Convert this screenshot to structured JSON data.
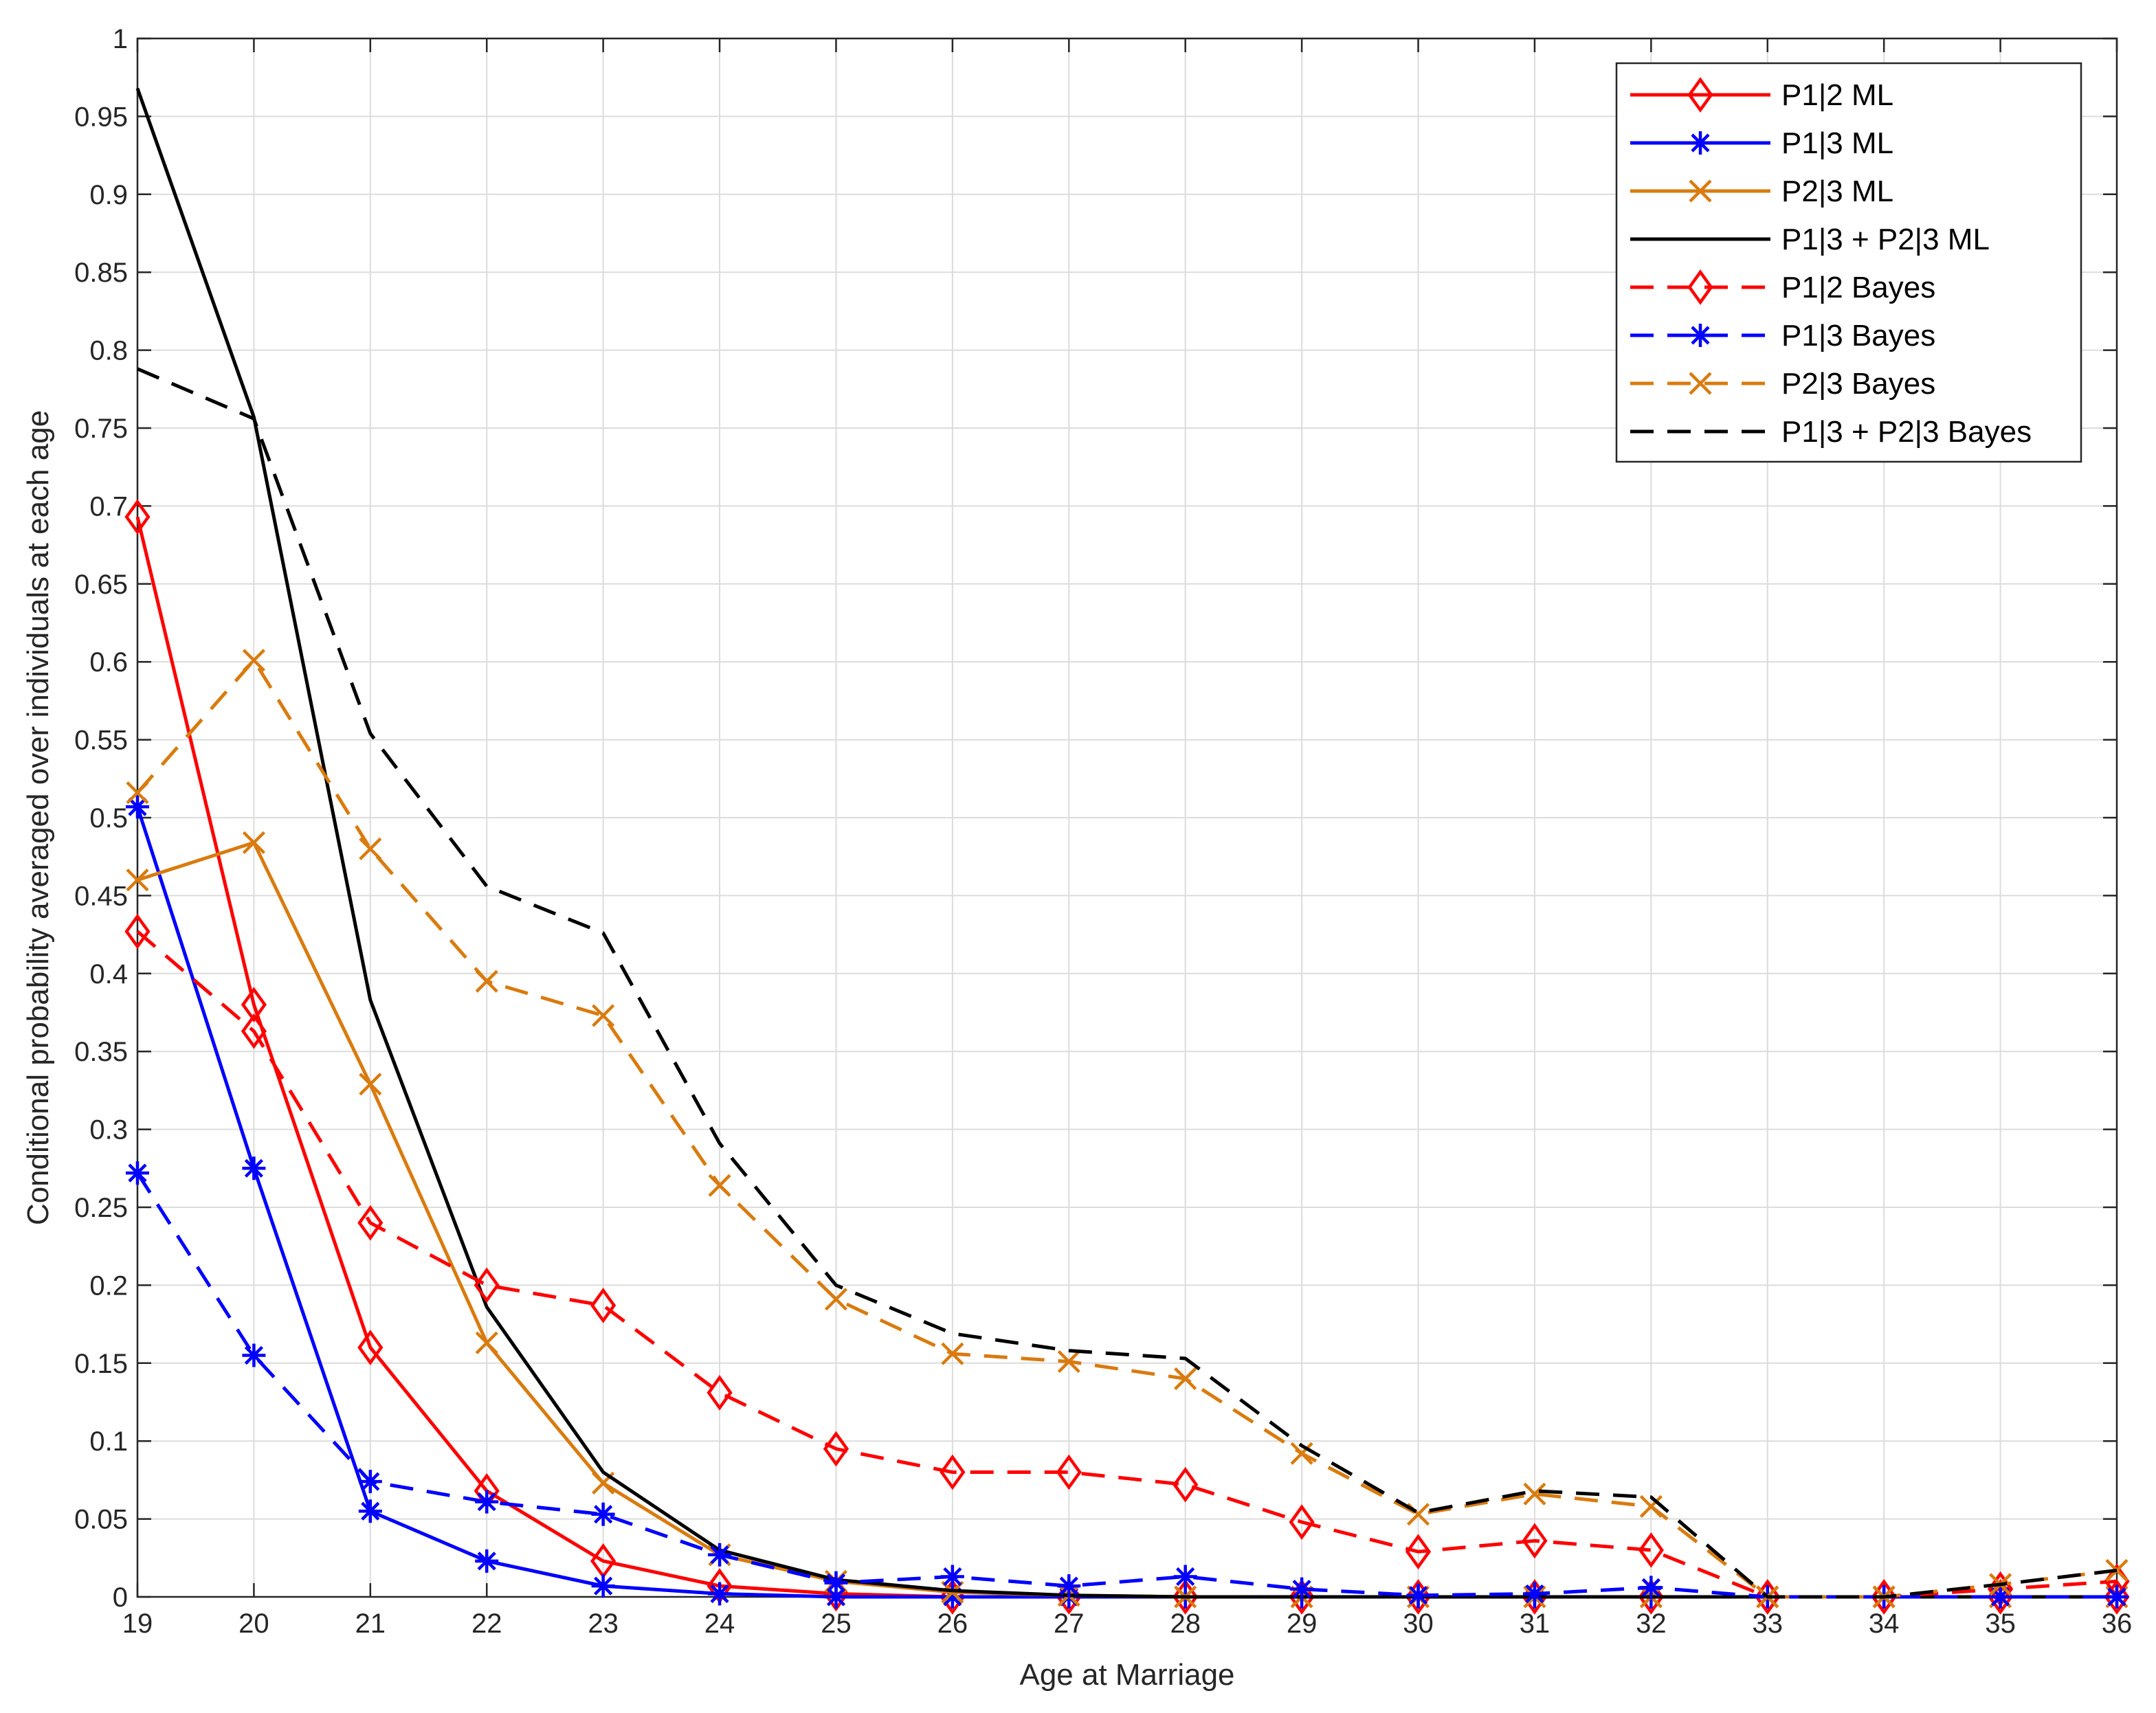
{
  "chart_data": {
    "type": "line",
    "title": "",
    "xlabel": "Age at Marriage",
    "ylabel": "Conditional probability averaged over individuals at each age",
    "xlim": [
      19,
      36
    ],
    "ylim": [
      0,
      1
    ],
    "x": [
      19,
      20,
      21,
      22,
      23,
      24,
      25,
      26,
      27,
      28,
      29,
      30,
      31,
      32,
      33,
      34,
      35,
      36
    ],
    "x_ticks": [
      "19",
      "20",
      "21",
      "22",
      "23",
      "24",
      "25",
      "26",
      "27",
      "28",
      "29",
      "30",
      "31",
      "32",
      "33",
      "34",
      "35",
      "36"
    ],
    "y_ticks": [
      "0",
      "0.05",
      "0.1",
      "0.15",
      "0.2",
      "0.25",
      "0.3",
      "0.35",
      "0.4",
      "0.45",
      "0.5",
      "0.55",
      "0.6",
      "0.65",
      "0.7",
      "0.75",
      "0.8",
      "0.85",
      "0.9",
      "0.95",
      "1"
    ],
    "grid": true,
    "legend_position": "top-right",
    "series": [
      {
        "name": "P1|2 ML",
        "color": "#FF0000",
        "dash": "solid",
        "marker": "diamond",
        "values": [
          0.693,
          0.38,
          0.16,
          0.068,
          0.023,
          0.007,
          0.002,
          0.0,
          0.0,
          0.0,
          0.0,
          0.0,
          0.0,
          0.0,
          0.0,
          0.0,
          0.0,
          0.0
        ]
      },
      {
        "name": "P1|3 ML",
        "color": "#0000FF",
        "dash": "solid",
        "marker": "star",
        "values": [
          0.507,
          0.275,
          0.055,
          0.023,
          0.007,
          0.002,
          0.0,
          0.0,
          0.0,
          0.0,
          0.0,
          0.0,
          0.0,
          0.0,
          0.0,
          0.0,
          0.0,
          0.0
        ]
      },
      {
        "name": "P2|3 ML",
        "color": "#D97B0F",
        "dash": "solid",
        "marker": "x",
        "values": [
          0.46,
          0.484,
          0.329,
          0.163,
          0.073,
          0.027,
          0.01,
          0.003,
          0.001,
          0.0,
          0.0,
          0.0,
          0.0,
          0.0,
          0.0,
          0.0,
          0.0,
          0.0
        ]
      },
      {
        "name": "P1|3 + P2|3 ML",
        "color": "#000000",
        "dash": "solid",
        "marker": "none",
        "values": [
          0.968,
          0.757,
          0.383,
          0.186,
          0.08,
          0.03,
          0.011,
          0.004,
          0.001,
          0.0,
          0.0,
          0.0,
          0.0,
          0.0,
          0.0,
          0.0,
          0.0,
          0.0
        ]
      },
      {
        "name": "P1|2 Bayes",
        "color": "#FF0000",
        "dash": "dashed",
        "marker": "diamond",
        "values": [
          0.427,
          0.363,
          0.24,
          0.2,
          0.187,
          0.131,
          0.095,
          0.08,
          0.08,
          0.072,
          0.048,
          0.029,
          0.036,
          0.03,
          0.0,
          0.0,
          0.005,
          0.01
        ]
      },
      {
        "name": "P1|3 Bayes",
        "color": "#0000FF",
        "dash": "dashed",
        "marker": "star",
        "values": [
          0.272,
          0.155,
          0.074,
          0.061,
          0.053,
          0.027,
          0.009,
          0.013,
          0.007,
          0.013,
          0.005,
          0.001,
          0.002,
          0.006,
          0.0,
          0.0,
          0.0,
          0.0
        ]
      },
      {
        "name": "P2|3 Bayes",
        "color": "#D97B0F",
        "dash": "dashed",
        "marker": "x",
        "values": [
          0.516,
          0.601,
          0.48,
          0.395,
          0.373,
          0.264,
          0.191,
          0.156,
          0.151,
          0.14,
          0.092,
          0.053,
          0.066,
          0.058,
          0.0,
          0.0,
          0.008,
          0.017
        ]
      },
      {
        "name": "P1|3 + P2|3 Bayes",
        "color": "#000000",
        "dash": "dashed",
        "marker": "none",
        "values": [
          0.788,
          0.756,
          0.554,
          0.456,
          0.426,
          0.291,
          0.2,
          0.169,
          0.158,
          0.153,
          0.097,
          0.054,
          0.068,
          0.064,
          0.0,
          0.0,
          0.008,
          0.017
        ]
      }
    ]
  }
}
